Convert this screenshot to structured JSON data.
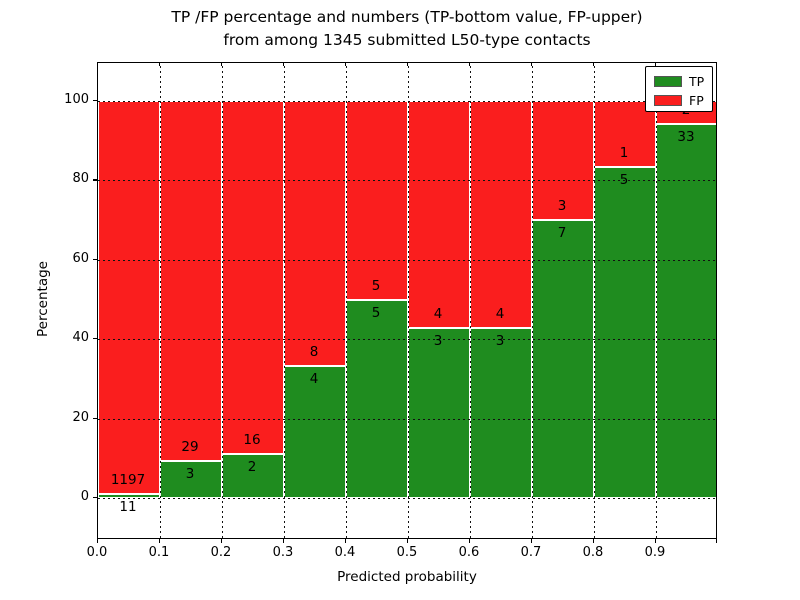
{
  "figure": {
    "title_line1": "TP /FP percentage and numbers (TP-bottom value, FP-upper)",
    "title_line2": "from among 1345 submitted L50-type contacts"
  },
  "axes": {
    "xlabel": "Predicted probability",
    "ylabel": "Percentage",
    "xtick_labels": [
      "0.0",
      "0.1",
      "0.2",
      "0.3",
      "0.4",
      "0.5",
      "0.6",
      "0.7",
      "0.8",
      "0.9"
    ],
    "ytick_labels": [
      "0",
      "20",
      "40",
      "60",
      "80",
      "100"
    ],
    "ytick_values": [
      0,
      20,
      40,
      60,
      80,
      100
    ]
  },
  "legend": {
    "items": [
      {
        "label": "TP",
        "color": "#1f8c1f"
      },
      {
        "label": "FP",
        "color": "#fa1e1e"
      }
    ]
  },
  "chart_data": {
    "type": "bar",
    "stacked": true,
    "normalized_to_percent": true,
    "title": "TP /FP percentage and numbers (TP-bottom value, FP-upper) from among 1345 submitted L50-type contacts",
    "xlabel": "Predicted probability",
    "ylabel": "Percentage",
    "total_submitted": 1345,
    "bin_edges": [
      0.0,
      0.1,
      0.2,
      0.3,
      0.4,
      0.5,
      0.6,
      0.7,
      0.8,
      0.9,
      1.0
    ],
    "series": [
      {
        "name": "TP",
        "color": "#1f8c1f",
        "counts": [
          11,
          3,
          2,
          4,
          5,
          3,
          3,
          7,
          5,
          33
        ]
      },
      {
        "name": "FP",
        "color": "#fa1e1e",
        "counts": [
          1197,
          29,
          16,
          8,
          5,
          4,
          4,
          3,
          1,
          2
        ]
      }
    ],
    "tp_percent_per_bin": [
      0.91,
      9.38,
      11.11,
      33.33,
      50.0,
      42.86,
      42.86,
      70.0,
      83.33,
      94.29
    ],
    "bar_value_labels": "FP count above stack boundary, TP count below stack boundary",
    "ylim": [
      0,
      100
    ],
    "grid": true,
    "grid_style": "dotted",
    "legend_position": "upper right"
  }
}
